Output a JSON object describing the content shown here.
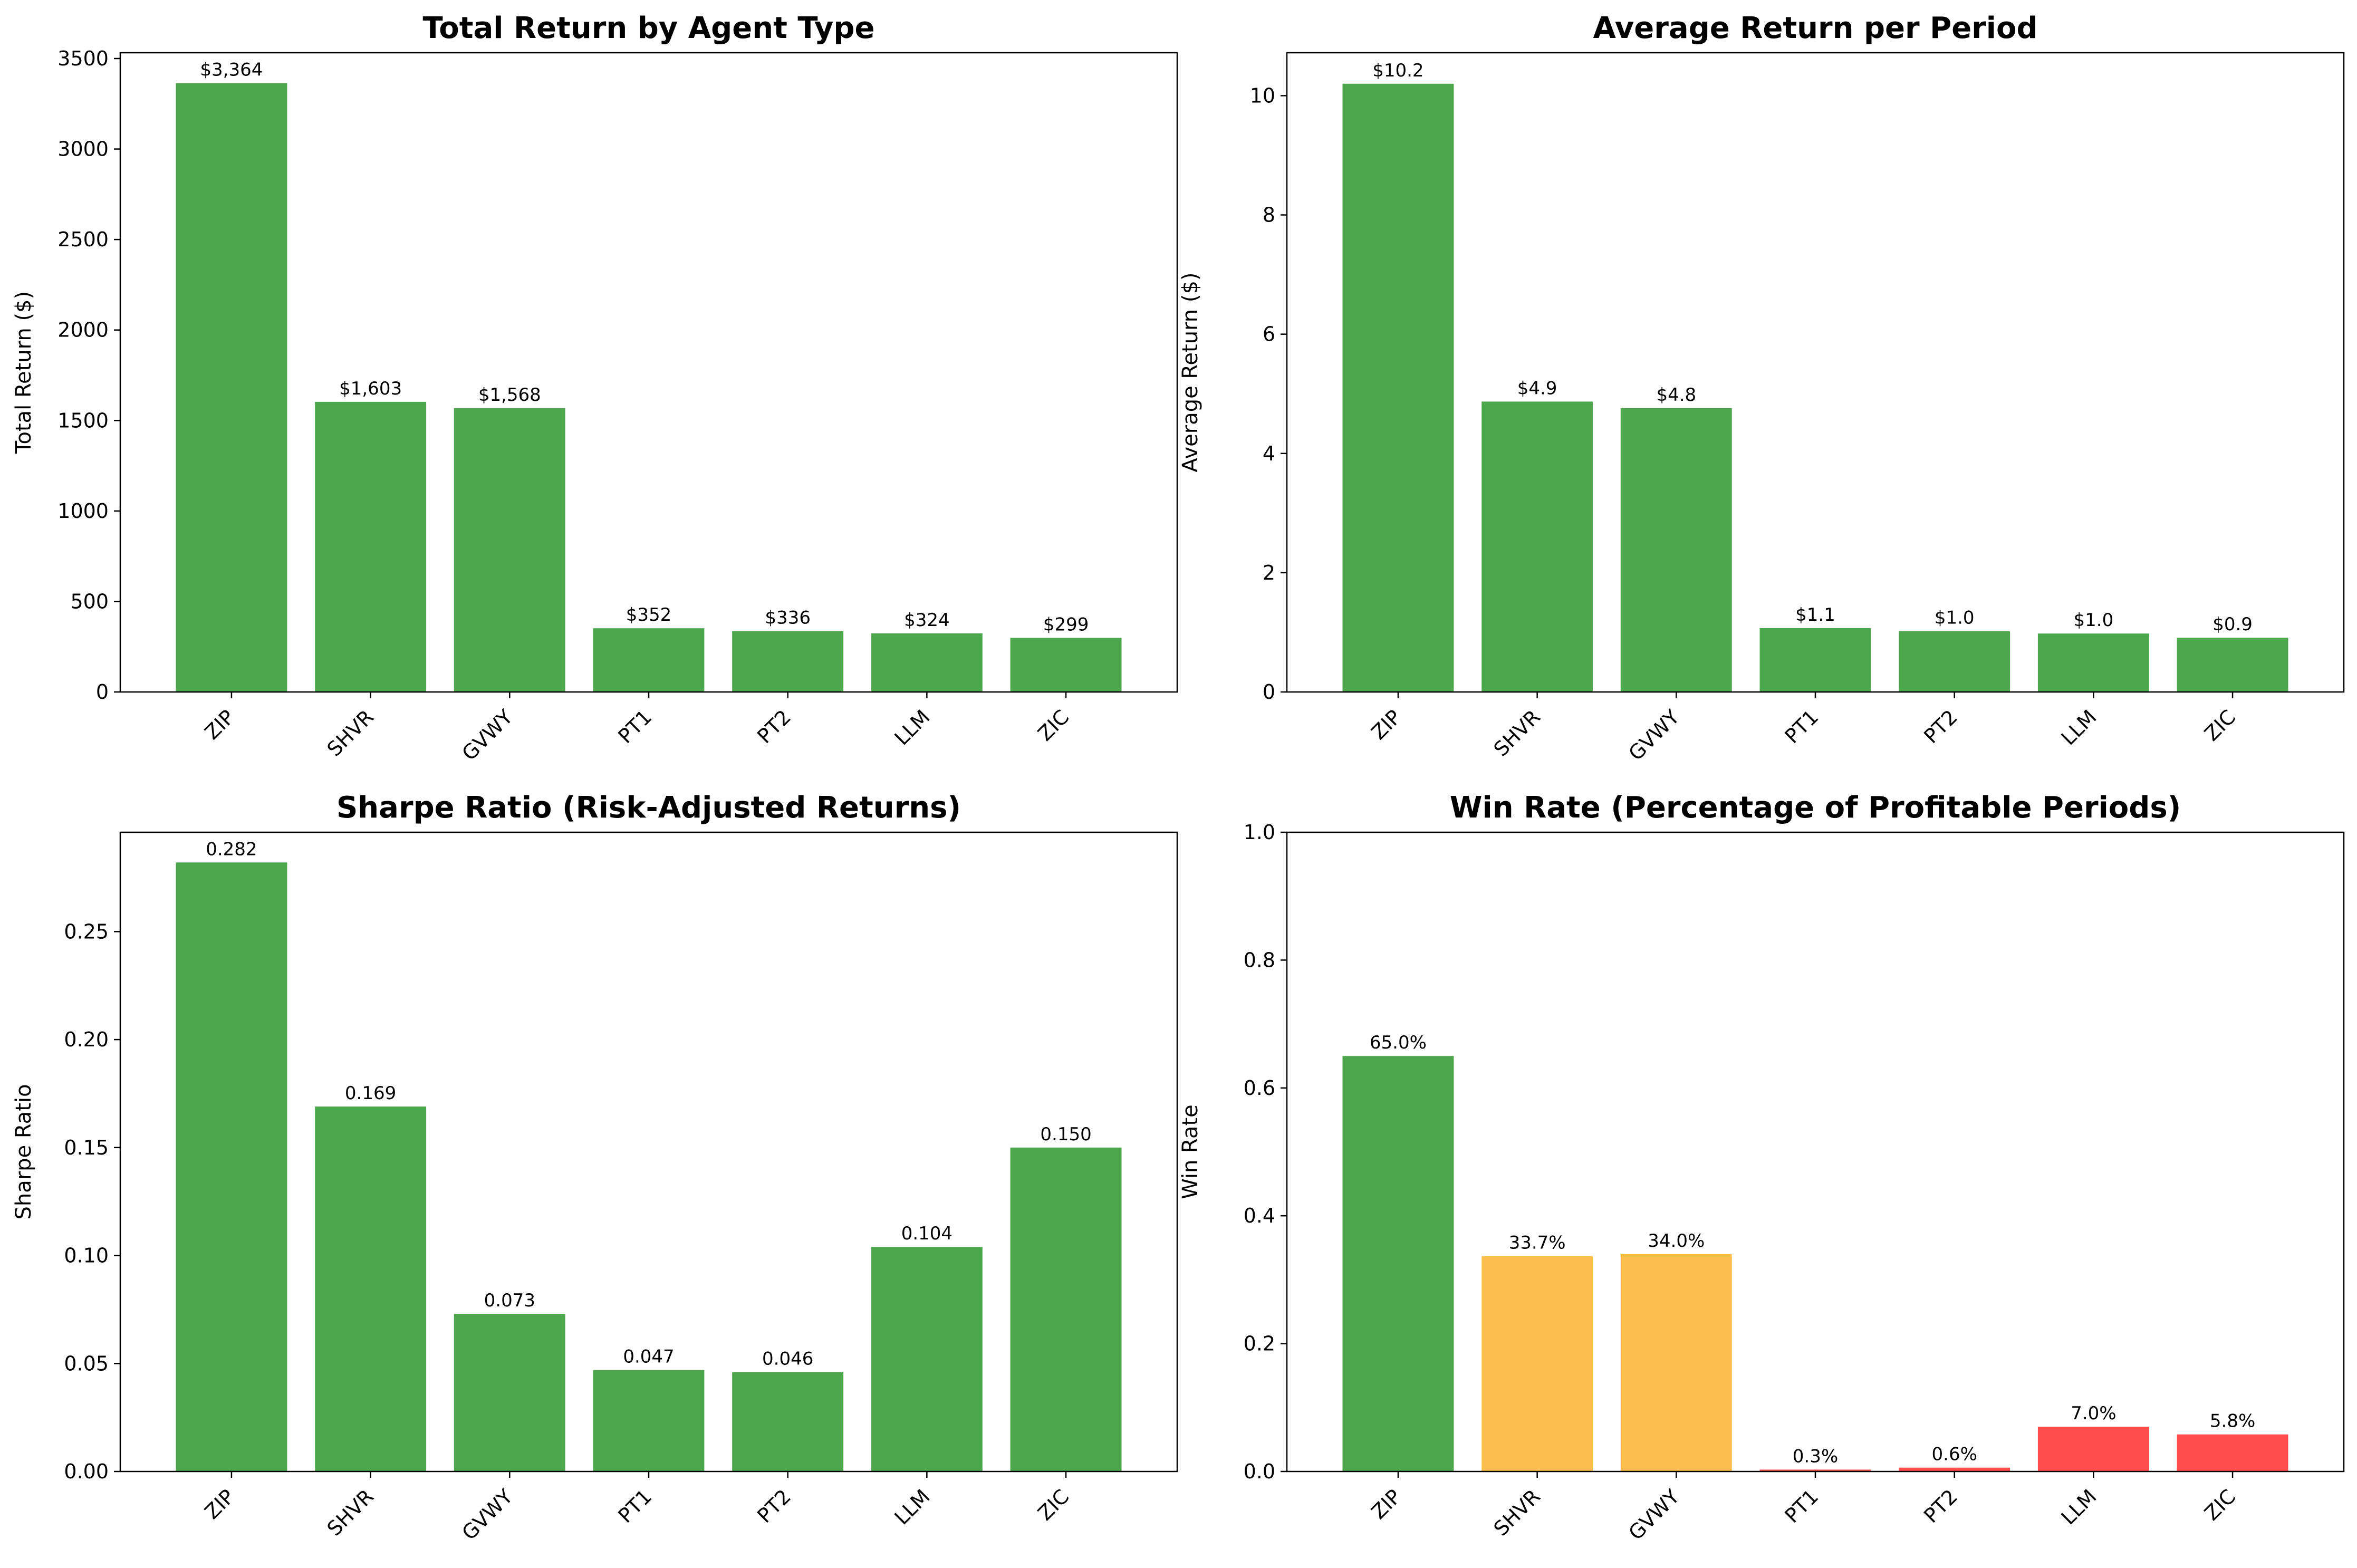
{
  "chart_data": [
    {
      "type": "bar",
      "title": "Total Return by Agent Type",
      "xlabel": "",
      "ylabel": "Total Return ($)",
      "categories": [
        "ZIP",
        "SHVR",
        "GVWY",
        "PT1",
        "PT2",
        "LLM",
        "ZIC"
      ],
      "values": [
        3364,
        1603,
        1568,
        352,
        336,
        324,
        299
      ],
      "value_labels": [
        "$3,364",
        "$1,603",
        "$1,568",
        "$352",
        "$336",
        "$324",
        "$299"
      ],
      "bar_colors": [
        "#4ca64c",
        "#4ca64c",
        "#4ca64c",
        "#4ca64c",
        "#4ca64c",
        "#4ca64c",
        "#4ca64c"
      ],
      "ylim": [
        0,
        3532
      ],
      "yticks": [
        0,
        500,
        1000,
        1500,
        2000,
        2500,
        3000,
        3500
      ],
      "ytick_labels": [
        "0",
        "500",
        "1000",
        "1500",
        "2000",
        "2500",
        "3000",
        "3500"
      ],
      "grid": false
    },
    {
      "type": "bar",
      "title": "Average Return per Period",
      "xlabel": "",
      "ylabel": "Average Return ($)",
      "categories": [
        "ZIP",
        "SHVR",
        "GVWY",
        "PT1",
        "PT2",
        "LLM",
        "ZIC"
      ],
      "values": [
        10.2,
        4.87,
        4.76,
        1.07,
        1.02,
        0.98,
        0.91
      ],
      "value_labels": [
        "$10.2",
        "$4.9",
        "$4.8",
        "$1.1",
        "$1.0",
        "$1.0",
        "$0.9"
      ],
      "bar_colors": [
        "#4ca64c",
        "#4ca64c",
        "#4ca64c",
        "#4ca64c",
        "#4ca64c",
        "#4ca64c",
        "#4ca64c"
      ],
      "ylim": [
        0,
        10.72
      ],
      "yticks": [
        0,
        2,
        4,
        6,
        8,
        10
      ],
      "ytick_labels": [
        "0",
        "2",
        "4",
        "6",
        "8",
        "10"
      ],
      "grid": false
    },
    {
      "type": "bar",
      "title": "Sharpe Ratio (Risk-Adjusted Returns)",
      "xlabel": "",
      "ylabel": "Sharpe Ratio",
      "categories": [
        "ZIP",
        "SHVR",
        "GVWY",
        "PT1",
        "PT2",
        "LLM",
        "ZIC"
      ],
      "values": [
        0.282,
        0.169,
        0.073,
        0.047,
        0.046,
        0.104,
        0.15
      ],
      "value_labels": [
        "0.282",
        "0.169",
        "0.073",
        "0.047",
        "0.046",
        "0.104",
        "0.150"
      ],
      "bar_colors": [
        "#4ca64c",
        "#4ca64c",
        "#4ca64c",
        "#4ca64c",
        "#4ca64c",
        "#4ca64c",
        "#4ca64c"
      ],
      "ylim": [
        0,
        0.296
      ],
      "yticks": [
        0,
        0.05,
        0.1,
        0.15,
        0.2,
        0.25
      ],
      "ytick_labels": [
        "0.00",
        "0.05",
        "0.10",
        "0.15",
        "0.20",
        "0.25"
      ],
      "grid": false
    },
    {
      "type": "bar",
      "title": "Win Rate (Percentage of Profitable Periods)",
      "xlabel": "",
      "ylabel": "Win Rate",
      "categories": [
        "ZIP",
        "SHVR",
        "GVWY",
        "PT1",
        "PT2",
        "LLM",
        "ZIC"
      ],
      "values": [
        0.65,
        0.337,
        0.34,
        0.003,
        0.006,
        0.07,
        0.058
      ],
      "value_labels": [
        "65.0%",
        "33.7%",
        "34.0%",
        "0.3%",
        "0.6%",
        "7.0%",
        "5.8%"
      ],
      "bar_colors": [
        "#4ca64c",
        "#ffbf4c",
        "#ffbf4c",
        "#ff4c4c",
        "#ff4c4c",
        "#ff4c4c",
        "#ff4c4c"
      ],
      "ylim": [
        0,
        1.0
      ],
      "yticks": [
        0,
        0.2,
        0.4,
        0.6,
        0.8,
        1.0
      ],
      "ytick_labels": [
        "0.0",
        "0.2",
        "0.4",
        "0.6",
        "0.8",
        "1.0"
      ],
      "grid": false
    }
  ]
}
